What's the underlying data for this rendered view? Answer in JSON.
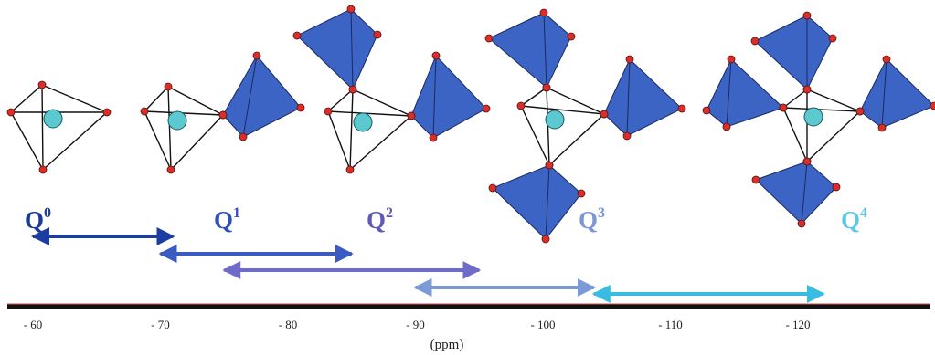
{
  "species": [
    {
      "label": "Q",
      "sup": "0",
      "color": "#1a3a9a"
    },
    {
      "label": "Q",
      "sup": "1",
      "color": "#3050b8"
    },
    {
      "label": "Q",
      "sup": "2",
      "color": "#6058b8"
    },
    {
      "label": "Q",
      "sup": "3",
      "color": "#7a98d8"
    },
    {
      "label": "Q",
      "sup": "4",
      "color": "#5ec8e6"
    }
  ],
  "ranges": [
    {
      "species": "Q0",
      "from": -60,
      "to": -71,
      "color": "#1c3ea0"
    },
    {
      "species": "Q1",
      "from": -70,
      "to": -85,
      "color": "#3a5cc2"
    },
    {
      "species": "Q2",
      "from": -75,
      "to": -95,
      "color": "#6e6cc8"
    },
    {
      "species": "Q3",
      "from": -90,
      "to": -104,
      "color": "#7c9ad8"
    },
    {
      "species": "Q4",
      "from": -104,
      "to": -122,
      "color": "#38bde0"
    }
  ],
  "axis": {
    "ticks": [
      "- 60",
      "- 70",
      "- 80",
      "- 90",
      "- 100",
      "- 110",
      "- 120"
    ],
    "tick_values": [
      -60,
      -70,
      -80,
      -90,
      -100,
      -110,
      -120
    ],
    "unit": "(ppm)"
  },
  "colors": {
    "tetrahedron": "#3c64c4",
    "oxygen": "#d83028",
    "silicon": "#5cc8d0"
  }
}
